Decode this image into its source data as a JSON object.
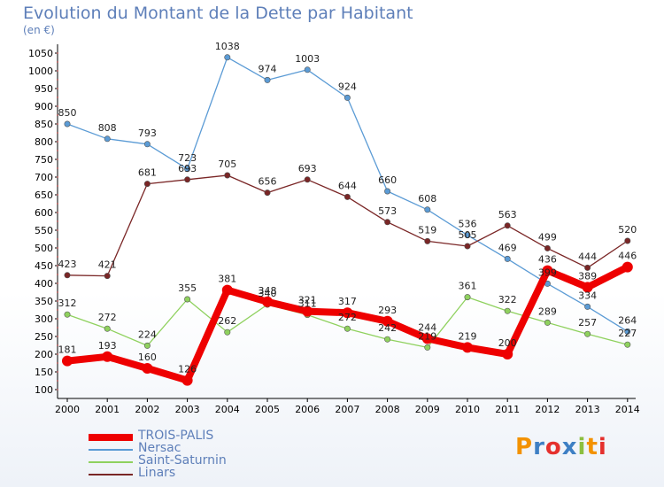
{
  "title": "Evolution du Montant de la Dette par Habitant",
  "subtitle": "(en €)",
  "logo": {
    "text": "Proxiti",
    "colors": [
      "#f39200",
      "#3e7fc4",
      "#e5302d",
      "#3e7fc4",
      "#8cbf3f",
      "#f39200",
      "#e5302d"
    ]
  },
  "chart_data": {
    "type": "line",
    "title": "Evolution du Montant de la Dette par Habitant",
    "ylabel": "(en €)",
    "xlabel": "",
    "x": [
      "2000",
      "2001",
      "2002",
      "2003",
      "2004",
      "2005",
      "2006",
      "2007",
      "2008",
      "2009",
      "2010",
      "2011",
      "2012",
      "2013",
      "2014"
    ],
    "ylim": [
      100,
      1050
    ],
    "yticks": [
      100,
      150,
      200,
      250,
      300,
      350,
      400,
      450,
      500,
      550,
      600,
      650,
      700,
      750,
      800,
      850,
      900,
      950,
      1000,
      1050
    ],
    "grid": false,
    "legend_position": "bottom-left",
    "series": [
      {
        "name": "TROIS-PALIS",
        "color": "#ee0000",
        "values": [
          181,
          193,
          160,
          126,
          381,
          348,
          321,
          317,
          293,
          244,
          219,
          200,
          436,
          389,
          446
        ]
      },
      {
        "name": "Nersac",
        "color": "#5b9bd5",
        "values": [
          850,
          808,
          793,
          723,
          1038,
          974,
          1003,
          924,
          660,
          608,
          536,
          469,
          399,
          334,
          264
        ]
      },
      {
        "name": "Saint-Saturnin",
        "color": "#8fd15e",
        "values": [
          312,
          272,
          224,
          355,
          262,
          340,
          311,
          272,
          242,
          219,
          361,
          322,
          289,
          257,
          227
        ]
      },
      {
        "name": "Linars",
        "color": "#7a2626",
        "values": [
          423,
          421,
          681,
          693,
          705,
          656,
          693,
          644,
          573,
          519,
          505,
          563,
          499,
          444,
          520
        ]
      }
    ]
  }
}
